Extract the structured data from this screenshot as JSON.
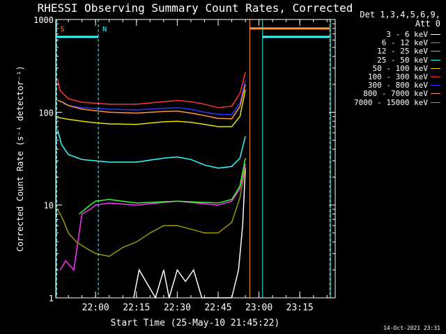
{
  "chart_data": {
    "type": "line",
    "title": "RHESSI Observing Summary Count Rates, Corrected",
    "xlabel": "Start Time (25-May-10 21:45:22)",
    "ylabel": "Corrected Count Rate (s⁻¹ detector⁻¹)",
    "yscale": "log",
    "ylim": [
      1,
      1000
    ],
    "y_ticks": [
      "1",
      "10",
      "100",
      "1000"
    ],
    "xlim": [
      "21:45:22",
      "23:28:00"
    ],
    "x_ticks": [
      "22:00",
      "22:15",
      "22:30",
      "22:45",
      "23:00",
      "23:15"
    ],
    "grid": false,
    "legend_placement": "top-right",
    "legend_title": [
      "Det 1,3,4,5,6,9,",
      "Att 0"
    ],
    "series": [
      {
        "name": "3 - 6 keV",
        "color": "#ffffff",
        "x": [
          "22:14:00",
          "22:16:00",
          "22:22:00",
          "22:25:00",
          "22:27:00",
          "22:30:00",
          "22:33:00",
          "22:36:00",
          "22:39:00",
          "22:45:00",
          "22:50:00",
          "22:52:30",
          "22:54:00",
          "22:55:00"
        ],
        "y": [
          1,
          2,
          1,
          2,
          1,
          2,
          1.5,
          2,
          1,
          1,
          1,
          2,
          6,
          25
        ]
      },
      {
        "name": "6 - 12 keV",
        "color": "#ff33ff",
        "x": [
          "21:47:00",
          "21:49:00",
          "21:52:00",
          "21:55:00",
          "21:58:00",
          "22:00:00",
          "22:05:00",
          "22:15:00",
          "22:30:00",
          "22:45:00",
          "22:50:00",
          "22:53:00",
          "22:55:00"
        ],
        "y": [
          2,
          2.5,
          2,
          8,
          9,
          10,
          10.5,
          10,
          11,
          10,
          11,
          15,
          28
        ]
      },
      {
        "name": "12 - 25 keV",
        "color": "#33ff33",
        "x": [
          "21:54:00",
          "21:58:00",
          "22:00:00",
          "22:05:00",
          "22:15:00",
          "22:30:00",
          "22:45:00",
          "22:50:00",
          "22:53:00",
          "22:55:00"
        ],
        "y": [
          8,
          10,
          11,
          11.5,
          10.5,
          11,
          10.5,
          11.5,
          16,
          32
        ]
      },
      {
        "name": "25 - 50 keV",
        "color": "#33ffff",
        "x": [
          "21:46:00",
          "21:47:30",
          "21:50:00",
          "21:55:00",
          "22:00:00",
          "22:05:00",
          "22:15:00",
          "22:25:00",
          "22:30:00",
          "22:35:00",
          "22:40:00",
          "22:45:00",
          "22:50:00",
          "22:53:00",
          "22:55:00"
        ],
        "y": [
          65,
          45,
          35,
          31,
          30,
          29,
          29,
          32,
          33,
          31,
          27,
          25,
          26,
          32,
          55
        ]
      },
      {
        "name": "50 - 100 keV",
        "color": "#e6e600",
        "x": [
          "21:46:00",
          "21:50:00",
          "21:55:00",
          "22:00:00",
          "22:05:00",
          "22:15:00",
          "22:25:00",
          "22:30:00",
          "22:35:00",
          "22:40:00",
          "22:45:00",
          "22:50:00",
          "22:53:00",
          "22:55:00"
        ],
        "y": [
          88,
          84,
          80,
          77,
          75,
          74,
          79,
          80,
          78,
          74,
          70,
          70,
          90,
          175
        ]
      },
      {
        "name": "100 - 300 keV",
        "color": "#ff3333",
        "x": [
          "21:46:00",
          "21:47:00",
          "21:50:00",
          "21:55:00",
          "22:00:00",
          "22:05:00",
          "22:15:00",
          "22:25:00",
          "22:30:00",
          "22:35:00",
          "22:40:00",
          "22:45:00",
          "22:50:00",
          "22:53:00",
          "22:55:00"
        ],
        "y": [
          230,
          170,
          140,
          128,
          125,
          122,
          122,
          130,
          134,
          130,
          122,
          112,
          116,
          160,
          270
        ]
      },
      {
        "name": "300 - 800 keV",
        "color": "#3333ff",
        "x": [
          "21:48:00",
          "21:50:00",
          "21:55:00",
          "22:00:00",
          "22:05:00",
          "22:15:00",
          "22:25:00",
          "22:30:00",
          "22:35:00",
          "22:40:00",
          "22:45:00",
          "22:50:00",
          "22:53:00",
          "22:55:00"
        ],
        "y": [
          125,
          118,
          112,
          110,
          108,
          106,
          110,
          112,
          108,
          100,
          95,
          94,
          125,
          220
        ]
      },
      {
        "name": "800 - 7000 keV",
        "color": "#ff9933",
        "x": [
          "21:46:00",
          "21:48:00",
          "21:50:00",
          "21:55:00",
          "22:00:00",
          "22:05:00",
          "22:15:00",
          "22:25:00",
          "22:30:00",
          "22:35:00",
          "22:40:00",
          "22:45:00",
          "22:50:00",
          "22:53:00",
          "22:55:00"
        ],
        "y": [
          135,
          128,
          118,
          108,
          104,
          100,
          98,
          102,
          103,
          98,
          92,
          86,
          85,
          115,
          200
        ]
      },
      {
        "name": "7000 - 15000 keV",
        "color": "#999900",
        "x": [
          "21:46:00",
          "21:48:00",
          "21:50:00",
          "21:53:00",
          "21:56:00",
          "22:00:00",
          "22:05:00",
          "22:10:00",
          "22:15:00",
          "22:20:00",
          "22:25:00",
          "22:30:00",
          "22:35:00",
          "22:40:00",
          "22:45:00",
          "22:50:00",
          "22:53:00",
          "22:55:00"
        ],
        "y": [
          9,
          7,
          5,
          4,
          3.5,
          3,
          2.8,
          3.5,
          4,
          5,
          6,
          6,
          5.5,
          5,
          5,
          6.5,
          12,
          26
        ]
      }
    ],
    "annotations": [
      {
        "text": "S",
        "x": "21:45:30",
        "color": "#ff9933"
      },
      {
        "text": "N",
        "x": "22:01:00",
        "color": "#33ffff"
      }
    ],
    "vertical_markers": [
      {
        "x": "21:45:30",
        "color": "#33ffff",
        "style": "solid"
      },
      {
        "x": "21:45:45",
        "color": "#ff9933",
        "style": "dashed"
      },
      {
        "x": "22:01:00",
        "color": "#33ffff",
        "style": "dashed"
      },
      {
        "x": "22:56:40",
        "color": "#ff9933",
        "style": "solid"
      },
      {
        "x": "23:01:20",
        "color": "#33ffff",
        "style": "solid"
      },
      {
        "x": "23:26:00",
        "color": "#ff9933",
        "style": "dashed"
      },
      {
        "x": "23:26:15",
        "color": "#33ffff",
        "style": "solid"
      }
    ],
    "horizontal_markers": [
      {
        "x0": "21:45:22",
        "x1": "22:01:00",
        "y": 650,
        "color": "#33ffff"
      },
      {
        "x0": "22:56:40",
        "x1": "23:26:00",
        "y": 800,
        "color": "#ff9933"
      },
      {
        "x0": "23:01:20",
        "x1": "23:26:00",
        "y": 650,
        "color": "#33ffff"
      }
    ]
  },
  "footer_timestamp": "14-Oct-2021 23:31"
}
